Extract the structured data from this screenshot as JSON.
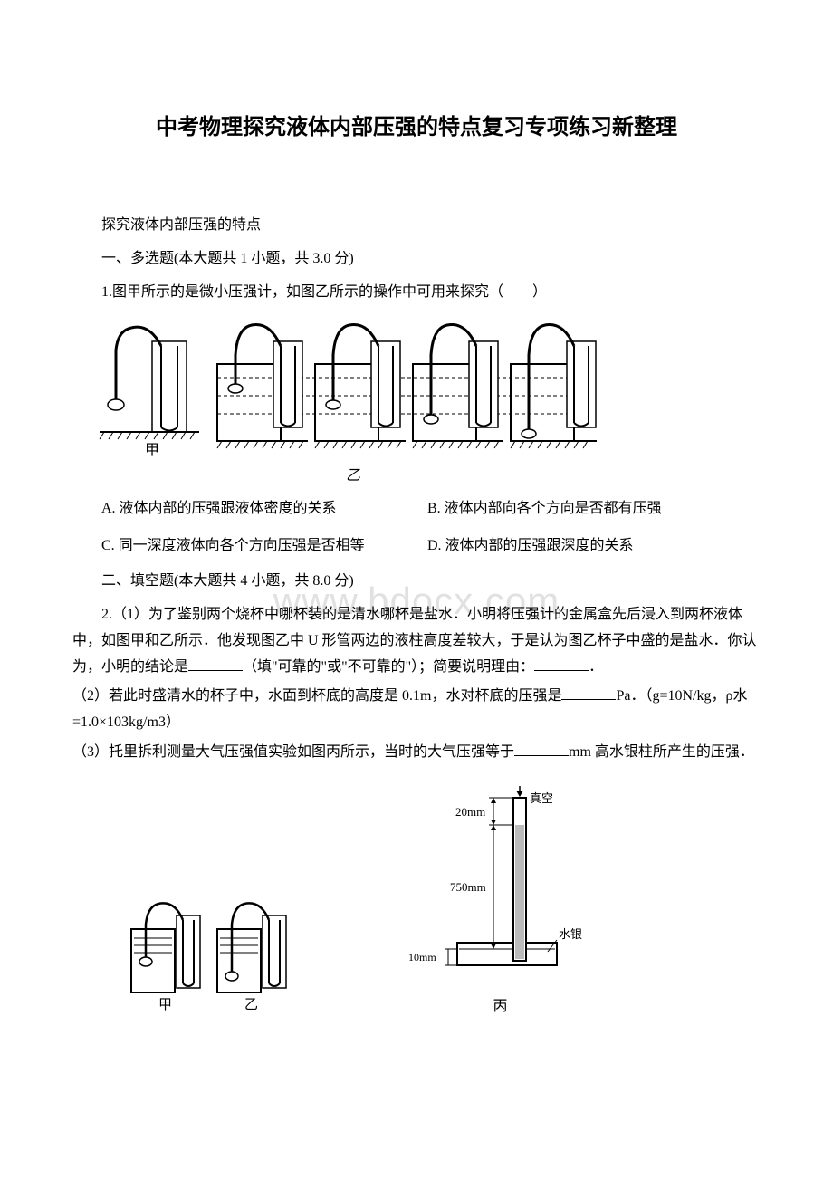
{
  "title": "中考物理探究液体内部压强的特点复习专项练习新整理",
  "intro": "探究液体内部压强的特点",
  "section1_heading": "一、多选题(本大题共 1 小题，共 3.0 分)",
  "q1": {
    "stem": "1.图甲所示的是微小压强计，如图乙所示的操作中可用来探究（　　）",
    "fig_label": "乙",
    "optA": "A. 液体内部的压强跟液体密度的关系",
    "optB": "B. 液体内部向各个方向是否都有压强",
    "optC": "C. 同一深度液体向各个方向压强是否相等",
    "optD": "D. 液体内部的压强跟深度的关系"
  },
  "section2_heading": "二、填空题(本大题共 4 小题，共 8.0 分)",
  "q2": {
    "p1a": "2.（1）为了鉴别两个烧杯中哪杯装的是清水哪杯是盐水．小明将压强计的金属盒先后浸入到两杯液体中，如图甲和乙所示．他发现图乙中 U 形管两边的液柱高度差较大，于是认为图乙杯子中盛的是盐水．你认为，小明的结论是",
    "p1b": "（填\"可靠的\"或\"不可靠的\"）；简要说明理由：",
    "p1c": "．",
    "p2a": "（2）若此时盛清水的杯子中，水面到杯底的高度是 0.1m，水对杯底的压强是",
    "p2b": "Pa．（g=10N/kg，ρ水=1.0×103kg/m3）",
    "p3a": "（3）托里拆利测量大气压强值实验如图丙所示，当时的大气压强等于",
    "p3b": "mm 高水银柱所产生的压强．",
    "torricelli": {
      "top_label": "真空",
      "h1": "20mm",
      "h2": "750mm",
      "h3": "10mm",
      "liquid_label": "水银",
      "fig_label": "丙"
    }
  },
  "watermark": "www.bdocx.com",
  "colors": {
    "text": "#000000",
    "bg": "#ffffff",
    "watermark": "rgba(180,180,180,0.4)"
  }
}
